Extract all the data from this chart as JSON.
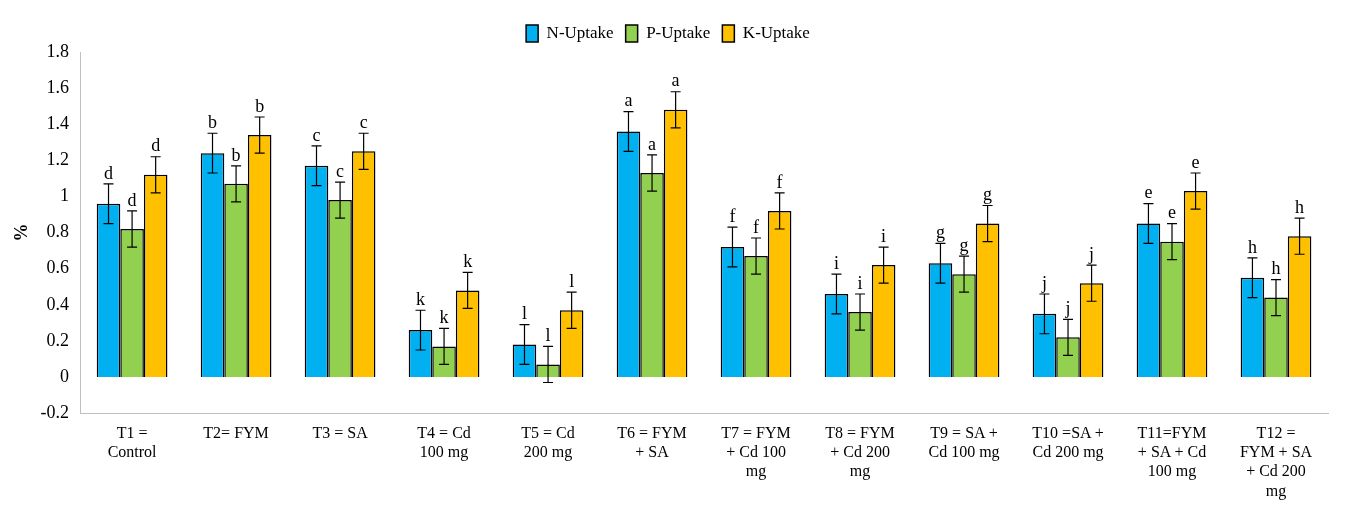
{
  "chart_data": {
    "type": "bar",
    "ylabel": "%",
    "categories": [
      "T1 = Control",
      "T2= FYM",
      "T3 = SA",
      "T4 = Cd 100 mg",
      "T5 = Cd 200 mg",
      "T6 = FYM + SA",
      "T7 = FYM + Cd 100 mg",
      "T8 = FYM + Cd 200 mg",
      "T9 = SA + Cd 100 mg",
      "T10 =SA + Cd 200 mg",
      "T11=FYM + SA + Cd 100 mg",
      "T12 = FYM + SA + Cd 200 mg"
    ],
    "series": [
      {
        "name": "N-Uptake",
        "color": "#00b0f0",
        "values": [
          0.96,
          1.24,
          1.17,
          0.26,
          0.18,
          1.36,
          0.72,
          0.46,
          0.63,
          0.35,
          0.85,
          0.55
        ],
        "errors": [
          0.11,
          0.11,
          0.11,
          0.11,
          0.11,
          0.11,
          0.11,
          0.11,
          0.11,
          0.11,
          0.11,
          0.11
        ],
        "value_labels": [
          "d",
          "b",
          "c",
          "k",
          "l",
          "a",
          "f",
          "i",
          "g",
          "j",
          "e",
          "h"
        ]
      },
      {
        "name": "P-Uptake",
        "color": "#92d050",
        "values": [
          0.82,
          1.07,
          0.98,
          0.17,
          0.07,
          1.13,
          0.67,
          0.36,
          0.57,
          0.22,
          0.75,
          0.44
        ],
        "errors": [
          0.1,
          0.1,
          0.1,
          0.1,
          0.1,
          0.1,
          0.1,
          0.1,
          0.1,
          0.1,
          0.1,
          0.1
        ],
        "value_labels": [
          "d",
          "b",
          "c",
          "k",
          "l",
          "a",
          "f",
          "i",
          "g",
          "j",
          "e",
          "h"
        ]
      },
      {
        "name": "K-Uptake",
        "color": "#ffc000",
        "values": [
          1.12,
          1.34,
          1.25,
          0.48,
          0.37,
          1.48,
          0.92,
          0.62,
          0.85,
          0.52,
          1.03,
          0.78
        ],
        "errors": [
          0.1,
          0.1,
          0.1,
          0.1,
          0.1,
          0.1,
          0.1,
          0.1,
          0.1,
          0.1,
          0.1,
          0.1
        ],
        "value_labels": [
          "d",
          "b",
          "c",
          "k",
          "l",
          "a",
          "f",
          "i",
          "g",
          "j",
          "e",
          "h"
        ]
      }
    ],
    "ylim": [
      -0.2,
      1.8
    ],
    "yticks": [
      -0.2,
      0,
      0.2,
      0.4,
      0.6,
      0.8,
      1,
      1.2,
      1.4,
      1.6,
      1.8
    ],
    "grid": false,
    "legend": "top"
  }
}
